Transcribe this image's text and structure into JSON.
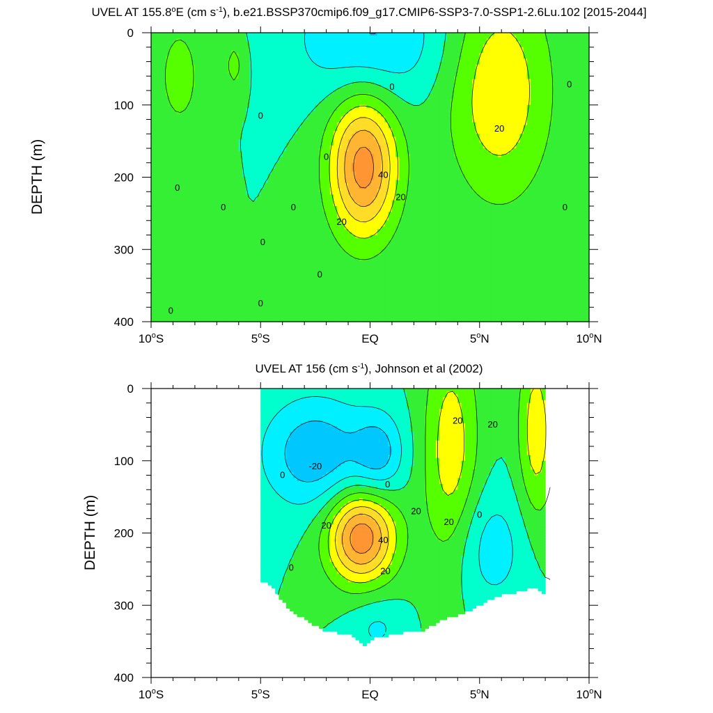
{
  "chart_data": [
    {
      "type": "contour",
      "title_prefix": "UVEL AT 155.8",
      "title_degree": "o",
      "title_mid": "E (cm s",
      "title_sup": "-1",
      "title_suffix": "), b.e21.BSSP370cmip6.f09_g17.CMIP6-SSP3-7.0-SSP1-2.6Lu.102 [2015-2044]",
      "ylabel": "DEPTH (m)",
      "xlim": [
        -10,
        10
      ],
      "ylim": [
        400,
        0
      ],
      "x_ticks": [
        {
          "value": -10,
          "label": "10",
          "sup": "o",
          "hemi": "S"
        },
        {
          "value": -5,
          "label": "5",
          "sup": "o",
          "hemi": "S"
        },
        {
          "value": 0,
          "label": "EQ",
          "sup": "",
          "hemi": ""
        },
        {
          "value": 5,
          "label": "5",
          "sup": "o",
          "hemi": "N"
        },
        {
          "value": 10,
          "label": "10",
          "sup": "o",
          "hemi": "N"
        }
      ],
      "y_ticks": [
        0,
        100,
        200,
        300,
        400
      ],
      "contour_levels_cm_s": [
        -30,
        -20,
        -10,
        0,
        10,
        20,
        30,
        40,
        50
      ],
      "fill_colors": [
        "#00c8ff",
        "#00f0ff",
        "#00ffcc",
        "#35ef35",
        "#55ff00",
        "#ffff00",
        "#ffdc28",
        "#ffb432",
        "#ff9633"
      ],
      "features": [
        {
          "kind": "jet",
          "x": -0.3,
          "depth": 185,
          "max": 55,
          "sx": 1.1,
          "sz": 70
        },
        {
          "kind": "jet",
          "x": 5.9,
          "depth": 80,
          "max": 28,
          "sx": 1.7,
          "sz": 110
        },
        {
          "kind": "jet",
          "x": -8.7,
          "depth": 60,
          "max": 13,
          "sx": 0.9,
          "sz": 70
        },
        {
          "kind": "jet",
          "x": -6.2,
          "depth": 45,
          "max": 13,
          "sx": 0.35,
          "sz": 30
        },
        {
          "kind": "jet",
          "x": 0.0,
          "depth": 10,
          "max": -22,
          "sx": 2.4,
          "sz": 60
        }
      ],
      "contour_labels": [
        {
          "x": 1.0,
          "depth": 75,
          "text": "0"
        },
        {
          "x": -5.0,
          "depth": 115,
          "text": "0"
        },
        {
          "x": 9.1,
          "depth": 72,
          "text": "0"
        },
        {
          "x": 5.9,
          "depth": 133,
          "text": "20"
        },
        {
          "x": -2.0,
          "depth": 172,
          "text": "0"
        },
        {
          "x": 1.4,
          "depth": 228,
          "text": "20"
        },
        {
          "x": 0.6,
          "depth": 197,
          "text": "40"
        },
        {
          "x": -8.8,
          "depth": 215,
          "text": "0"
        },
        {
          "x": -6.7,
          "depth": 242,
          "text": "0"
        },
        {
          "x": -3.5,
          "depth": 242,
          "text": "0"
        },
        {
          "x": 8.9,
          "depth": 242,
          "text": "0"
        },
        {
          "x": -1.3,
          "depth": 262,
          "text": "20"
        },
        {
          "x": -4.9,
          "depth": 290,
          "text": "0"
        },
        {
          "x": -2.3,
          "depth": 335,
          "text": "0"
        },
        {
          "x": -5.0,
          "depth": 375,
          "text": "0"
        },
        {
          "x": -9.1,
          "depth": 385,
          "text": "0"
        }
      ]
    },
    {
      "type": "contour",
      "title_prefix": "UVEL AT 156 (cm s",
      "title_sup": "-1",
      "title_suffix": "), Johnson et al (2002)",
      "ylabel": "DEPTH (m)",
      "xlim": [
        -10,
        10
      ],
      "ylim": [
        400,
        0
      ],
      "data_extent_x": [
        -5,
        8
      ],
      "x_ticks": [
        {
          "value": -10,
          "label": "10",
          "sup": "o",
          "hemi": "S"
        },
        {
          "value": -5,
          "label": "5",
          "sup": "o",
          "hemi": "S"
        },
        {
          "value": 0,
          "label": "EQ",
          "sup": "",
          "hemi": ""
        },
        {
          "value": 5,
          "label": "5",
          "sup": "o",
          "hemi": "N"
        },
        {
          "value": 10,
          "label": "10",
          "sup": "o",
          "hemi": "N"
        }
      ],
      "y_ticks": [
        0,
        100,
        200,
        300,
        400
      ],
      "contour_levels_cm_s": [
        -30,
        -20,
        -10,
        0,
        10,
        20,
        30,
        40,
        50
      ],
      "fill_colors": [
        "#00c8ff",
        "#00f0ff",
        "#00ffcc",
        "#35ef35",
        "#55ff00",
        "#ffff00",
        "#ffdc28",
        "#ffb432",
        "#ff9633"
      ],
      "bottom_depth_profile": [
        [
          -5.0,
          265
        ],
        [
          -4.6,
          270
        ],
        [
          -4.0,
          295
        ],
        [
          -3.5,
          310
        ],
        [
          -3.0,
          318
        ],
        [
          -2.5,
          328
        ],
        [
          -2.0,
          336
        ],
        [
          -1.0,
          340
        ],
        [
          -0.3,
          355
        ],
        [
          0.3,
          345
        ],
        [
          1.5,
          338
        ],
        [
          2.5,
          335
        ],
        [
          3.2,
          320
        ],
        [
          4.0,
          315
        ],
        [
          5.0,
          300
        ],
        [
          6.0,
          285
        ],
        [
          7.0,
          280
        ],
        [
          7.5,
          275
        ],
        [
          8.0,
          285
        ]
      ],
      "features": [
        {
          "kind": "jet",
          "x": -0.4,
          "depth": 205,
          "max": 58,
          "sx": 1.1,
          "sz": 45
        },
        {
          "kind": "jet",
          "x": 3.7,
          "depth": 90,
          "max": 26,
          "sx": 0.9,
          "sz": 120
        },
        {
          "kind": "jet",
          "x": 7.6,
          "depth": 60,
          "max": 26,
          "sx": 0.6,
          "sz": 90
        },
        {
          "kind": "jet",
          "x": -2.5,
          "depth": 90,
          "max": -28,
          "sx": 1.7,
          "sz": 55
        },
        {
          "kind": "jet",
          "x": 0.4,
          "depth": 90,
          "max": -22,
          "sx": 0.8,
          "sz": 40
        },
        {
          "kind": "jet",
          "x": 5.4,
          "depth": 220,
          "max": -16,
          "sx": 1.3,
          "sz": 60
        },
        {
          "kind": "jet",
          "x": 0.3,
          "depth": 330,
          "max": -12,
          "sx": 0.9,
          "sz": 30
        }
      ],
      "contour_labels": [
        {
          "x": 4.0,
          "depth": 45,
          "text": "20"
        },
        {
          "x": 5.6,
          "depth": 50,
          "text": "20"
        },
        {
          "x": -2.5,
          "depth": 108,
          "text": "-20"
        },
        {
          "x": -4.0,
          "depth": 120,
          "text": "0"
        },
        {
          "x": 0.8,
          "depth": 133,
          "text": "0"
        },
        {
          "x": 2.1,
          "depth": 170,
          "text": "20"
        },
        {
          "x": -2.0,
          "depth": 190,
          "text": "20"
        },
        {
          "x": 3.6,
          "depth": 185,
          "text": "20"
        },
        {
          "x": 5.0,
          "depth": 175,
          "text": "0"
        },
        {
          "x": 0.6,
          "depth": 210,
          "text": "40"
        },
        {
          "x": 0.7,
          "depth": 253,
          "text": "20"
        },
        {
          "x": -3.6,
          "depth": 248,
          "text": "0"
        }
      ]
    }
  ]
}
